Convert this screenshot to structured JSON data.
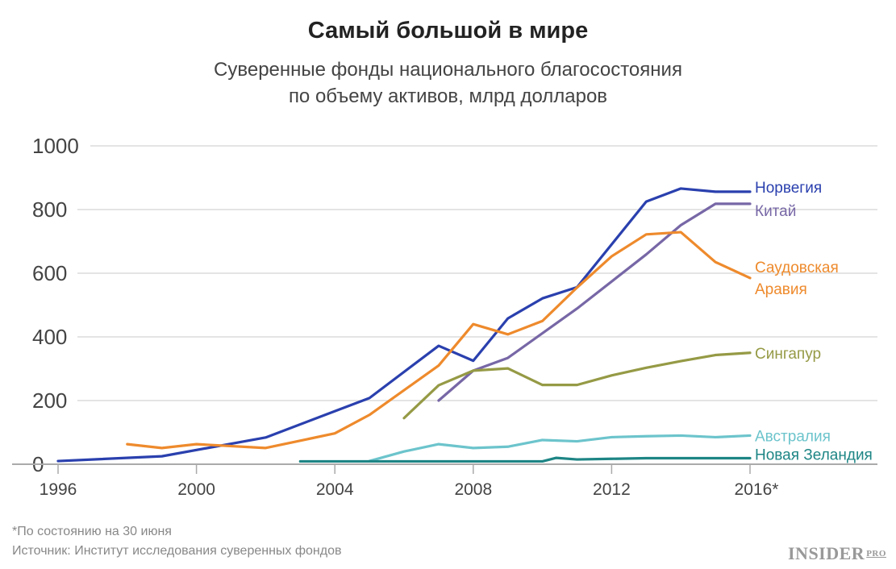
{
  "chart_data": {
    "type": "line",
    "title": "Самый большой в мире",
    "subtitle_lines": [
      "Суверенные фонды национального благосостояния",
      "по объему активов, млрд долларов"
    ],
    "xlabel": "",
    "ylabel": "",
    "xlim": [
      1996,
      2019.7
    ],
    "ylim": [
      0,
      1000
    ],
    "yticks": [
      0,
      200,
      400,
      600,
      800,
      1000
    ],
    "ytick_labels": [
      "0",
      "200",
      "400",
      "600",
      "800",
      "1000"
    ],
    "xticks": [
      1996,
      2000,
      2004,
      2008,
      2012,
      2016
    ],
    "xtick_labels": [
      "1996",
      "2000",
      "2004",
      "2008",
      "2012",
      "2016*"
    ],
    "grid": true,
    "legend": "inline labels at line ends (right)",
    "series": [
      {
        "name": "Норвегия",
        "color": "#2a40ae",
        "label_lines": [
          "Норвегия"
        ],
        "x": [
          1996,
          1999,
          2002,
          2005,
          2007,
          2008,
          2009,
          2010,
          2011,
          2013,
          2014,
          2015,
          2016
        ],
        "y": [
          10,
          25,
          84,
          208,
          372,
          325,
          458,
          521,
          556,
          825,
          866,
          856,
          856
        ]
      },
      {
        "name": "Китай",
        "color": "#7767a6",
        "label_lines": [
          "Китай"
        ],
        "x": [
          2007,
          2008,
          2009,
          2011,
          2013,
          2014,
          2015,
          2016
        ],
        "y": [
          200,
          294,
          334,
          489,
          659,
          751,
          818,
          818
        ]
      },
      {
        "name": "Саудовская Аравия",
        "color": "#ee8a2c",
        "label_lines": [
          "Саудовская",
          "Аравия"
        ],
        "x": [
          1998,
          1999,
          2000,
          2002,
          2004,
          2005,
          2007,
          2008,
          2009,
          2010,
          2011,
          2012,
          2013,
          2014,
          2015,
          2016
        ],
        "y": [
          63,
          51,
          63,
          51,
          97,
          155,
          310,
          440,
          408,
          450,
          555,
          653,
          722,
          729,
          635,
          585
        ]
      },
      {
        "name": "Сингапур",
        "color": "#959a45",
        "label_lines": [
          "Сингапур"
        ],
        "x": [
          2006,
          2007,
          2008,
          2009,
          2010,
          2011,
          2012,
          2013,
          2014,
          2015,
          2016
        ],
        "y": [
          145,
          248,
          294,
          301,
          249,
          249,
          279,
          303,
          324,
          343,
          350
        ]
      },
      {
        "name": "Австралия",
        "color": "#6cc4cc",
        "label_lines": [
          "Австралия"
        ],
        "x": [
          2005,
          2006,
          2007,
          2008,
          2009,
          2010,
          2011,
          2012,
          2013,
          2014,
          2015,
          2016
        ],
        "y": [
          10,
          40,
          63,
          51,
          55,
          76,
          72,
          85,
          88,
          90,
          85,
          90
        ]
      },
      {
        "name": "Новая Зеландия",
        "color": "#1e8585",
        "label_lines": [
          "Новая Зеландия"
        ],
        "x": [
          2003,
          2004,
          2005,
          2006,
          2007,
          2008,
          2009,
          2010,
          2010.4,
          2011,
          2012,
          2013,
          2014,
          2015,
          2016
        ],
        "y": [
          9,
          9,
          9,
          9,
          9,
          9,
          9,
          9,
          20,
          15,
          17,
          19,
          19,
          19,
          19
        ]
      }
    ]
  },
  "footnote": "*По состоянию на 30 июня",
  "source": "Источник: Институт исследования суверенных фондов",
  "logo": {
    "main": "INSIDER",
    "suffix": "PRO"
  }
}
